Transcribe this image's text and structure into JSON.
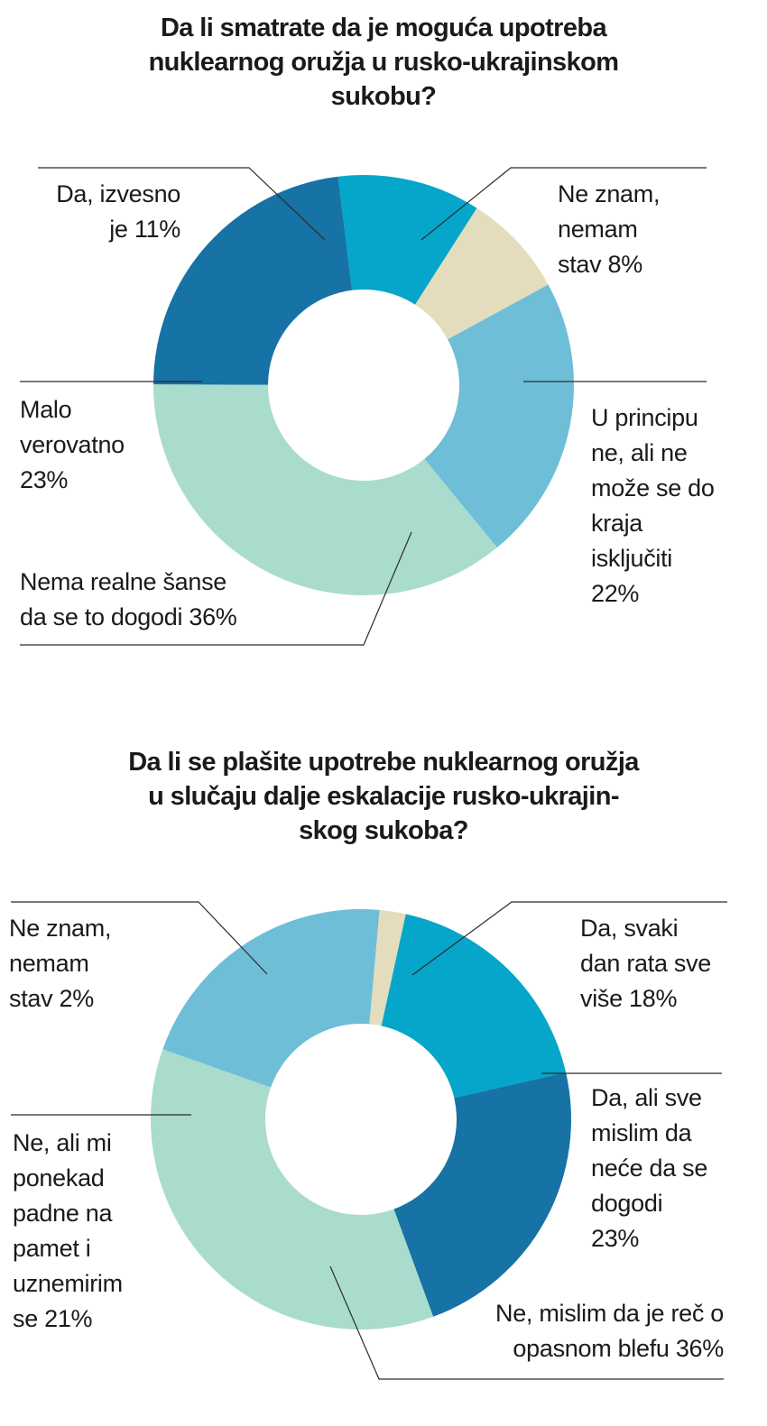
{
  "chart_data": [
    {
      "type": "pie",
      "title": "Da li smatrate da je moguća upotreba nuklearnog oružja u rusko-ukrajinskom sukobu?",
      "title_lines": [
        "Da li smatrate da je moguća upotreba",
        "nuklearnog oružja u rusko-ukrajinskom",
        "sukobu?"
      ],
      "slices": [
        {
          "label": "Da, izvesno je 11%",
          "lines": [
            "Da, izvesno",
            "je 11%"
          ],
          "value": 11,
          "color": "#05a6c9"
        },
        {
          "label": "Ne znam, nemam stav 8%",
          "lines": [
            "Ne znam,",
            "nemam",
            "stav 8%"
          ],
          "value": 8,
          "color": "#e4ddbd"
        },
        {
          "label": "U principu ne, ali ne može se do kraja isključiti 22%",
          "lines": [
            "U principu",
            "ne, ali ne",
            "može se do",
            "kraja",
            "isključiti",
            "22%"
          ],
          "value": 22,
          "color": "#6fbed8"
        },
        {
          "label": "Nema realne šanse da se to dogodi 36%",
          "lines": [
            "Nema realne šanse",
            "da se to dogodi 36%"
          ],
          "value": 36,
          "color": "#a9dccc"
        },
        {
          "label": "Malo verovatno 23%",
          "lines": [
            "Malo",
            "verovatno",
            "23%"
          ],
          "value": 23,
          "color": "#1772a5"
        }
      ]
    },
    {
      "type": "pie",
      "title": "Da li se plašite upotrebe nuklearnog oružja u slučaju dalje eskalacije rusko-ukrajinskog sukoba?",
      "title_lines": [
        "Da li se plašite upotrebe nuklearnog oružja",
        "u slučaju dalje eskalacije rusko-ukrajin-",
        "skog sukoba?"
      ],
      "slices": [
        {
          "label": "Da, svaki dan rata sve više 18%",
          "lines": [
            "Da, svaki",
            "dan rata sve",
            "više 18%"
          ],
          "value": 18,
          "color": "#05a6c9"
        },
        {
          "label": "Da, ali sve mislim da neće da se dogodi 23%",
          "lines": [
            "Da, ali sve",
            "mislim da",
            "neće da se",
            "dogodi",
            "23%"
          ],
          "value": 23,
          "color": "#1772a5"
        },
        {
          "label": "Ne, mislim da je reč o opasnom blefu 36%",
          "lines": [
            "Ne, mislim da je reč o",
            "opasnom blefu 36%"
          ],
          "value": 36,
          "color": "#a9dccc"
        },
        {
          "label": "Ne, ali mi ponekad padne na pamet i uznemirim se 21%",
          "lines": [
            "Ne, ali mi",
            "ponekad",
            "padne na",
            "pamet i",
            "uznemirim",
            "se 21%"
          ],
          "value": 21,
          "color": "#6fbed8"
        },
        {
          "label": "Ne znam, nemam stav 2%",
          "lines": [
            "Ne znam,",
            "nemam",
            "stav 2%"
          ],
          "value": 2,
          "color": "#e4ddbd"
        }
      ]
    }
  ]
}
